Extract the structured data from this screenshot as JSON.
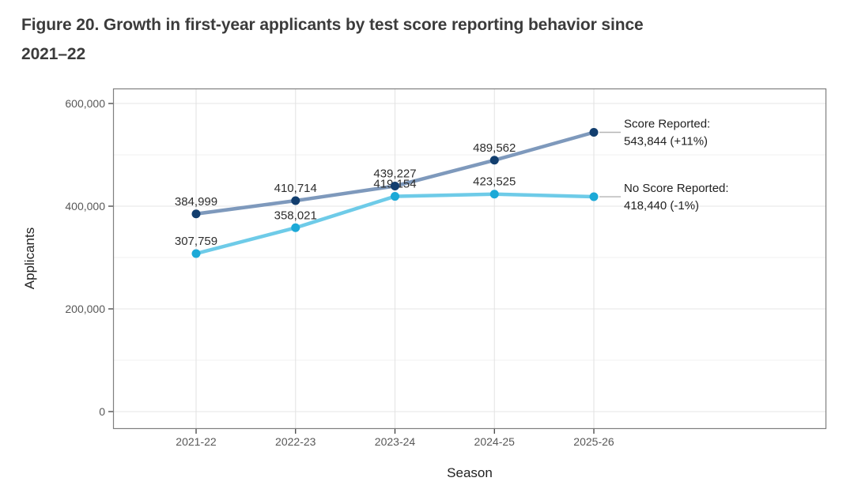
{
  "header": {
    "title_line1": "Figure 20. Growth in first-year applicants by test score reporting behavior since",
    "title_line2": "2021–22"
  },
  "chart_data": {
    "type": "line",
    "title": "Figure 20. Growth in first-year applicants by test score reporting behavior since 2021–22",
    "xlabel": "Season",
    "ylabel": "Applicants",
    "categories": [
      "2021-22",
      "2022-23",
      "2023-24",
      "2024-25",
      "2025-26"
    ],
    "series": [
      {
        "name": "Score Reported",
        "values": [
          384999,
          410714,
          439227,
          489562,
          543844
        ],
        "line_color": "#7e99bc",
        "point_color": "#123e6e",
        "annotation": [
          "Score Reported:",
          "543,844 (+11%)"
        ]
      },
      {
        "name": "No Score Reported",
        "values": [
          307759,
          358021,
          419154,
          423525,
          418440
        ],
        "line_color": "#6ecbe8",
        "point_color": "#1ca9d7",
        "annotation": [
          "No Score Reported:",
          "418,440 (-1%)"
        ]
      }
    ],
    "ylim": [
      0,
      600000
    ],
    "y_ticks": [
      {
        "value": 0,
        "label": "0"
      },
      {
        "value": 200000,
        "label": "200,000"
      },
      {
        "value": 400000,
        "label": "400,000"
      },
      {
        "value": 600000,
        "label": "600,000"
      }
    ],
    "y_minor_ticks": [
      100000,
      300000,
      500000
    ],
    "grid": true,
    "legend_position": "right-inline-annotations",
    "style": {
      "major_grid": "#e4e4e4",
      "minor_grid": "#f0f0f0",
      "panel_border": "#7f7f7f",
      "tick_mark": "#333333",
      "tick_label": "#585858",
      "data_label": "#2d2d2d",
      "annotation_text": "#212121",
      "leader_line": "#b5b5b5"
    }
  }
}
